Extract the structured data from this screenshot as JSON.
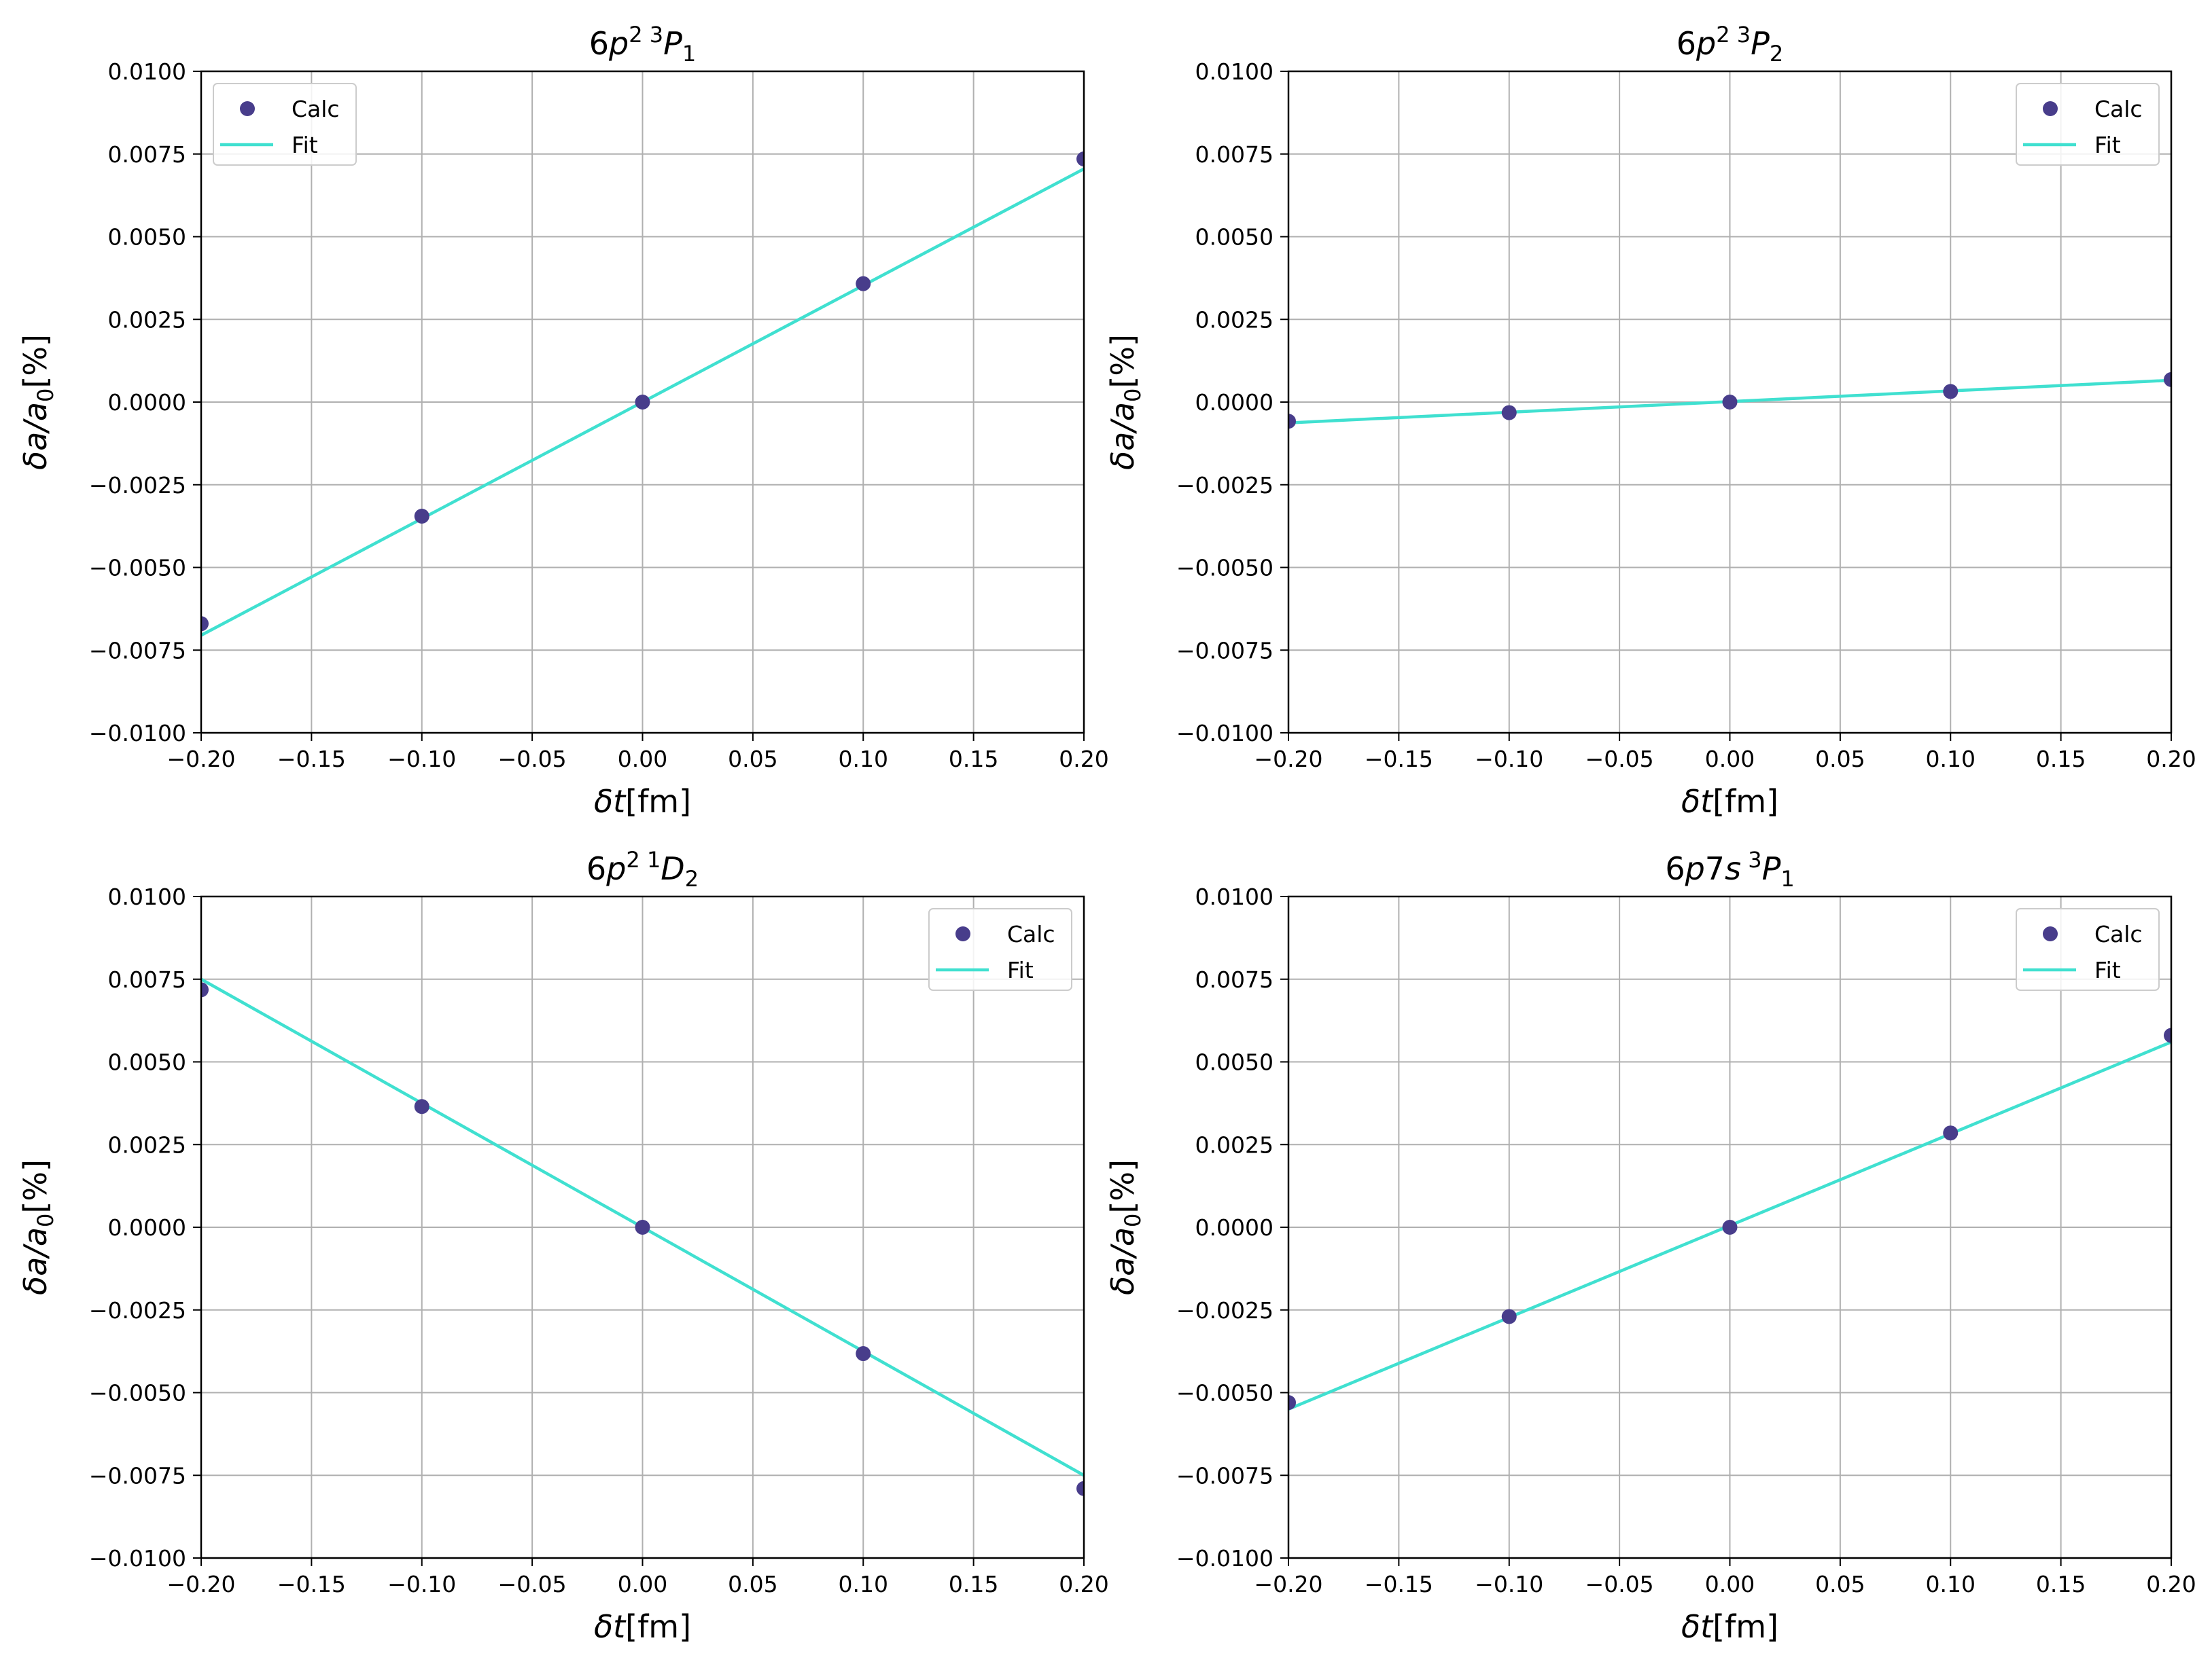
{
  "colors": {
    "calc": "#483D8B",
    "fit": "#40E0D0",
    "grid": "#B0B0B0",
    "axes": "#000000",
    "legend_border": "#CCCCCC"
  },
  "chart_data": [
    {
      "type": "scatter+line",
      "title": {
        "config": "6p",
        "config_sup": "2",
        "term_pre": "3",
        "term": "P",
        "term_sub": "1"
      },
      "xlabel": "δt[fm]",
      "ylabel": "δa/a₀[%]",
      "xlim": [
        -0.2,
        0.2
      ],
      "ylim": [
        -0.01,
        0.01
      ],
      "xticks": [
        -0.2,
        -0.15,
        -0.1,
        -0.05,
        0.0,
        0.05,
        0.1,
        0.15,
        0.2
      ],
      "xtick_labels": [
        "−0.20",
        "−0.15",
        "−0.10",
        "−0.05",
        "0.00",
        "0.05",
        "0.10",
        "0.15",
        "0.20"
      ],
      "yticks": [
        -0.01,
        -0.0075,
        -0.005,
        -0.0025,
        0.0,
        0.0025,
        0.005,
        0.0075,
        0.01
      ],
      "ytick_labels": [
        "−0.0100",
        "−0.0075",
        "−0.0050",
        "−0.0025",
        "0.0000",
        "0.0025",
        "0.0050",
        "0.0075",
        "0.0100"
      ],
      "grid": true,
      "legend": {
        "position": "upper left",
        "entries": [
          "Calc",
          "Fit"
        ]
      },
      "series": [
        {
          "name": "Calc",
          "kind": "scatter",
          "x": [
            -0.2,
            -0.1,
            0.0,
            0.1,
            0.2
          ],
          "y": [
            -0.0067,
            -0.00345,
            0.0,
            0.00358,
            0.00735
          ]
        },
        {
          "name": "Fit",
          "kind": "line",
          "x": [
            -0.2,
            0.2
          ],
          "y": [
            -0.00705,
            0.00705
          ]
        }
      ]
    },
    {
      "type": "scatter+line",
      "title": {
        "config": "6p",
        "config_sup": "2",
        "term_pre": "3",
        "term": "P",
        "term_sub": "2"
      },
      "xlabel": "δt[fm]",
      "ylabel": "δa/a₀[%]",
      "xlim": [
        -0.2,
        0.2
      ],
      "ylim": [
        -0.01,
        0.01
      ],
      "xticks": [
        -0.2,
        -0.15,
        -0.1,
        -0.05,
        0.0,
        0.05,
        0.1,
        0.15,
        0.2
      ],
      "xtick_labels": [
        "−0.20",
        "−0.15",
        "−0.10",
        "−0.05",
        "0.00",
        "0.05",
        "0.10",
        "0.15",
        "0.20"
      ],
      "yticks": [
        -0.01,
        -0.0075,
        -0.005,
        -0.0025,
        0.0,
        0.0025,
        0.005,
        0.0075,
        0.01
      ],
      "ytick_labels": [
        "−0.0100",
        "−0.0075",
        "−0.0050",
        "−0.0025",
        "0.0000",
        "0.0025",
        "0.0050",
        "0.0075",
        "0.0100"
      ],
      "grid": true,
      "legend": {
        "position": "upper right",
        "entries": [
          "Calc",
          "Fit"
        ]
      },
      "series": [
        {
          "name": "Calc",
          "kind": "scatter",
          "x": [
            -0.2,
            -0.1,
            0.0,
            0.1,
            0.2
          ],
          "y": [
            -0.00058,
            -0.00032,
            0.0,
            0.00032,
            0.00068
          ]
        },
        {
          "name": "Fit",
          "kind": "line",
          "x": [
            -0.2,
            0.2
          ],
          "y": [
            -0.00063,
            0.00066
          ]
        }
      ]
    },
    {
      "type": "scatter+line",
      "title": {
        "config": "6p",
        "config_sup": "2",
        "term_pre": "1",
        "term": "D",
        "term_sub": "2"
      },
      "xlabel": "δt[fm]",
      "ylabel": "δa/a₀[%]",
      "xlim": [
        -0.2,
        0.2
      ],
      "ylim": [
        -0.01,
        0.01
      ],
      "xticks": [
        -0.2,
        -0.15,
        -0.1,
        -0.05,
        0.0,
        0.05,
        0.1,
        0.15,
        0.2
      ],
      "xtick_labels": [
        "−0.20",
        "−0.15",
        "−0.10",
        "−0.05",
        "0.00",
        "0.05",
        "0.10",
        "0.15",
        "0.20"
      ],
      "yticks": [
        -0.01,
        -0.0075,
        -0.005,
        -0.0025,
        0.0,
        0.0025,
        0.005,
        0.0075,
        0.01
      ],
      "ytick_labels": [
        "−0.0100",
        "−0.0075",
        "−0.0050",
        "−0.0025",
        "0.0000",
        "0.0025",
        "0.0050",
        "0.0075",
        "0.0100"
      ],
      "grid": true,
      "legend": {
        "position": "upper right",
        "entries": [
          "Calc",
          "Fit"
        ]
      },
      "series": [
        {
          "name": "Calc",
          "kind": "scatter",
          "x": [
            -0.2,
            -0.1,
            0.0,
            0.1,
            0.2
          ],
          "y": [
            0.00718,
            0.00365,
            0.0,
            -0.00382,
            -0.0079
          ]
        },
        {
          "name": "Fit",
          "kind": "line",
          "x": [
            -0.2,
            0.2
          ],
          "y": [
            0.0075,
            -0.0075
          ]
        }
      ]
    },
    {
      "type": "scatter+line",
      "title": {
        "config": "6p7s",
        "config_sup": "",
        "term_pre": "3",
        "term": "P",
        "term_sub": "1"
      },
      "xlabel": "δt[fm]",
      "ylabel": "δa/a₀[%]",
      "xlim": [
        -0.2,
        0.2
      ],
      "ylim": [
        -0.01,
        0.01
      ],
      "xticks": [
        -0.2,
        -0.15,
        -0.1,
        -0.05,
        0.0,
        0.05,
        0.1,
        0.15,
        0.2
      ],
      "xtick_labels": [
        "−0.20",
        "−0.15",
        "−0.10",
        "−0.05",
        "0.00",
        "0.05",
        "0.10",
        "0.15",
        "0.20"
      ],
      "yticks": [
        -0.01,
        -0.0075,
        -0.005,
        -0.0025,
        0.0,
        0.0025,
        0.005,
        0.0075,
        0.01
      ],
      "ytick_labels": [
        "−0.0100",
        "−0.0075",
        "−0.0050",
        "−0.0025",
        "0.0000",
        "0.0025",
        "0.0050",
        "0.0075",
        "0.0100"
      ],
      "grid": true,
      "legend": {
        "position": "upper right",
        "entries": [
          "Calc",
          "Fit"
        ]
      },
      "series": [
        {
          "name": "Calc",
          "kind": "scatter",
          "x": [
            -0.2,
            -0.1,
            0.0,
            0.1,
            0.2
          ],
          "y": [
            -0.0053,
            -0.0027,
            0.0,
            0.00285,
            0.0058
          ]
        },
        {
          "name": "Fit",
          "kind": "line",
          "x": [
            -0.2,
            0.2
          ],
          "y": [
            -0.0055,
            0.0056
          ]
        }
      ]
    }
  ]
}
